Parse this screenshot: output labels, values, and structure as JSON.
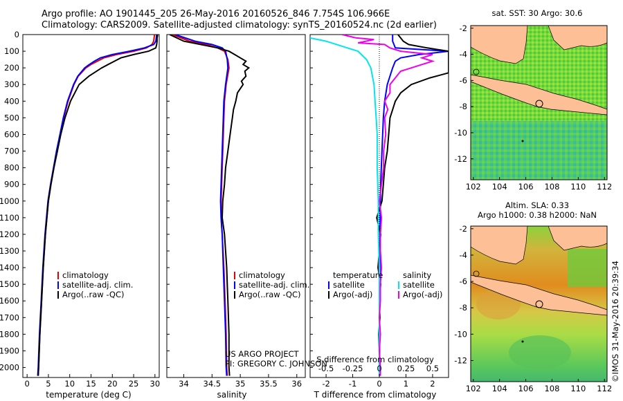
{
  "header": {
    "line1": "Argo profile: AO 1901445_205 26-May-2016 20160526_846 7.754S 106.966E",
    "line2": "Climatology: CARS2009. Satellite-adjusted climatology: synTS_20160524.nc (2d earlier)"
  },
  "colors": {
    "climatology": "#e00000",
    "satellite": "#0000ff",
    "argo": "#000000",
    "salinity_sat": "#00e5ee",
    "salinity_argo": "#ee00ee",
    "land": "#fdbf96"
  },
  "chart_data": [
    {
      "type": "line",
      "id": "temperature",
      "xlabel": "temperature (deg C)",
      "ylabel": "",
      "xlim": [
        -1,
        31
      ],
      "ylim": [
        2060,
        0
      ],
      "xticks": [
        0,
        5,
        10,
        15,
        20,
        25,
        30
      ],
      "yticks": [
        0,
        100,
        200,
        300,
        400,
        500,
        600,
        700,
        800,
        900,
        1000,
        1100,
        1200,
        1300,
        1400,
        1500,
        1600,
        1700,
        1800,
        1900,
        2000
      ],
      "legend": [
        "climatology",
        "satellite-adj. clim.",
        "Argo(..raw -QC)"
      ],
      "series": [
        {
          "name": "climatology",
          "depth": [
            0,
            20,
            40,
            60,
            80,
            100,
            120,
            140,
            160,
            180,
            200,
            250,
            300,
            400,
            500,
            600,
            700,
            800,
            900,
            1000,
            1200,
            1400,
            1600,
            1800,
            2000,
            2050
          ],
          "values": [
            29.9,
            29.8,
            29.7,
            29.3,
            28,
            25,
            21,
            18,
            16.5,
            15,
            13.8,
            12,
            11,
            9.6,
            8.6,
            7.8,
            7,
            6.3,
            5.6,
            5,
            4.3,
            3.8,
            3.4,
            3.0,
            2.7,
            2.6
          ]
        },
        {
          "name": "satellite-adj. clim.",
          "depth": [
            0,
            20,
            40,
            60,
            80,
            100,
            120,
            140,
            160,
            180,
            200,
            250,
            300,
            400,
            500,
            600,
            700,
            800,
            900,
            1000,
            1200,
            1400,
            1600,
            1800,
            2000,
            2050
          ],
          "values": [
            30.4,
            30.3,
            30.2,
            29.7,
            27.5,
            24,
            20,
            17.2,
            15.8,
            14.6,
            13.5,
            11.9,
            10.9,
            9.5,
            8.5,
            7.7,
            6.9,
            6.2,
            5.5,
            4.9,
            4.2,
            3.7,
            3.3,
            2.9,
            2.6,
            2.5
          ]
        },
        {
          "name": "Argo(..raw -QC)",
          "depth": [
            0,
            10,
            20,
            40,
            60,
            80,
            100,
            120,
            140,
            160,
            180,
            200,
            250,
            300,
            400,
            500,
            600,
            700,
            800,
            900,
            1000,
            1200,
            1400,
            1600,
            1800,
            2000,
            2050
          ],
          "values": [
            30.6,
            30.6,
            30.5,
            30.5,
            30.4,
            30.2,
            28.5,
            25,
            22,
            20.5,
            19,
            17.5,
            14.5,
            12.2,
            10.2,
            8.9,
            7.9,
            7.1,
            6.3,
            5.6,
            5,
            4.3,
            3.8,
            3.4,
            3.0,
            2.7,
            2.6
          ]
        }
      ]
    },
    {
      "type": "line",
      "id": "salinity",
      "xlabel": "salinity",
      "ylabel": "",
      "xlim": [
        33.7,
        36.15
      ],
      "ylim": [
        2060,
        0
      ],
      "xticks": [
        34,
        34.5,
        35,
        35.5,
        36
      ],
      "xticklabels": [
        "34",
        "34.5",
        "35",
        "35.5",
        "36"
      ],
      "legend": [
        "climatology",
        "satellite-adj. clim.",
        "Argo(..raw -QC)"
      ],
      "annotation": [
        "US ARGO PROJECT",
        "PI: GREGORY C. JOHNSON"
      ],
      "series": [
        {
          "name": "climatology",
          "depth": [
            0,
            40,
            60,
            80,
            100,
            150,
            200,
            300,
            400,
            500,
            600,
            700,
            800,
            900,
            1000,
            1100,
            1200,
            1400,
            1600,
            1800,
            2000,
            2050
          ],
          "values": [
            33.8,
            34.1,
            34.4,
            34.6,
            34.72,
            34.78,
            34.8,
            34.75,
            34.72,
            34.71,
            34.7,
            34.69,
            34.68,
            34.67,
            34.66,
            34.66,
            34.68,
            34.71,
            34.73,
            34.75,
            34.76,
            34.77
          ]
        },
        {
          "name": "satellite-adj. clim.",
          "depth": [
            0,
            40,
            60,
            80,
            100,
            150,
            200,
            300,
            400,
            500,
            600,
            700,
            800,
            900,
            1000,
            1100,
            1200,
            1400,
            1600,
            1800,
            2000,
            2050
          ],
          "values": [
            33.85,
            34.2,
            34.5,
            34.68,
            34.74,
            34.77,
            34.78,
            34.74,
            34.71,
            34.7,
            34.69,
            34.68,
            34.67,
            34.66,
            34.65,
            34.66,
            34.68,
            34.7,
            34.72,
            34.74,
            34.75,
            34.76
          ]
        },
        {
          "name": "Argo(..raw -QC)",
          "depth": [
            0,
            40,
            60,
            80,
            100,
            120,
            140,
            160,
            180,
            200,
            220,
            250,
            280,
            300,
            350,
            400,
            450,
            500,
            600,
            700,
            800,
            900,
            1000,
            1100,
            1200,
            1300,
            1400,
            1500,
            1600,
            1700,
            1800,
            1900,
            2000,
            2050
          ],
          "values": [
            33.75,
            34.0,
            34.3,
            34.6,
            34.8,
            34.9,
            35.0,
            35.1,
            35.05,
            35.15,
            35.08,
            35.1,
            35.02,
            35.05,
            34.95,
            34.92,
            34.88,
            34.86,
            34.82,
            34.78,
            34.74,
            34.72,
            34.69,
            34.68,
            34.72,
            34.74,
            34.76,
            34.77,
            34.78,
            34.79,
            34.8,
            34.8,
            34.8,
            34.81
          ]
        }
      ]
    },
    {
      "type": "line",
      "id": "differences",
      "xlabel": "T difference from climatology",
      "ylabel": "",
      "xlim": [
        -2.6,
        2.6
      ],
      "ylim": [
        2060,
        0
      ],
      "xticks": [
        -2,
        -1,
        0,
        1,
        2
      ],
      "xticklabels": [
        "-2",
        "-1",
        "0",
        "1",
        "2"
      ],
      "sxlabel": "S difference from climatology",
      "sticks": [
        -0.5,
        -0.25,
        0,
        0.25,
        0.5
      ],
      "sticklabels": [
        "-0.5",
        "-0.25",
        "0",
        "0.25",
        "0.5"
      ],
      "legend_temperature": {
        "title": "temperature",
        "items": [
          "satellite",
          "Argo(-adj)"
        ]
      },
      "legend_salinity": {
        "title": "salinity",
        "items": [
          "satellite",
          "Argo(-adj)"
        ]
      },
      "series": [
        {
          "name": "satellite",
          "kind": "temperature",
          "depth": [
            0,
            40,
            80,
            100,
            120,
            140,
            160,
            180,
            200,
            300,
            400,
            500,
            700,
            900,
            1100,
            1300,
            1500,
            1700,
            1900,
            2050
          ],
          "values": [
            0.5,
            0.5,
            0.6,
            2.6,
            1.5,
            0.8,
            0.6,
            0.55,
            0.5,
            0.3,
            0.2,
            0.15,
            0.1,
            0.05,
            0.03,
            0.02,
            0.02,
            0.01,
            0.01,
            0.0
          ]
        },
        {
          "name": "Argo(-adj)",
          "kind": "temperature",
          "depth": [
            0,
            40,
            60,
            80,
            100,
            120,
            140,
            180,
            200,
            230,
            260,
            300,
            350,
            400,
            500,
            600,
            700,
            800,
            900,
            1000,
            1100,
            1200,
            1300,
            1400,
            1500,
            1600,
            1700,
            1800,
            1900,
            2000,
            2050
          ],
          "values": [
            0.7,
            0.9,
            1.1,
            1.8,
            2.6,
            2.6,
            2.6,
            2.6,
            2.6,
            2.6,
            1.9,
            1.2,
            0.8,
            0.6,
            0.4,
            0.35,
            0.3,
            0.2,
            0.15,
            0.1,
            -0.1,
            0.05,
            0.0,
            -0.05,
            0.05,
            0.0,
            0.02,
            -0.02,
            0.0,
            0.0,
            0.01
          ]
        },
        {
          "name": "satellite",
          "kind": "salinity",
          "depth": [
            0,
            20,
            40,
            60,
            80,
            100,
            150,
            200,
            300,
            400,
            500,
            600,
            800,
            1000,
            1200,
            1400,
            1600,
            1800,
            2000,
            2050
          ],
          "values": [
            -0.9,
            -0.65,
            -0.5,
            -0.4,
            -0.3,
            -0.2,
            -0.12,
            -0.08,
            -0.05,
            -0.04,
            -0.03,
            -0.02,
            -0.02,
            -0.01,
            -0.01,
            0.0,
            0.0,
            0.0,
            0.0,
            0.0
          ]
        },
        {
          "name": "Argo(-adj)",
          "kind": "salinity",
          "depth": [
            0,
            20,
            30,
            50,
            60,
            80,
            100,
            120,
            140,
            160,
            200,
            220,
            260,
            300,
            350,
            400,
            450,
            500,
            600,
            700,
            800,
            900,
            1000,
            1100,
            1200,
            1300,
            1400,
            1500,
            1600,
            1700,
            1800,
            1900,
            2000,
            2050
          ],
          "values": [
            -0.35,
            -0.22,
            -0.05,
            -0.2,
            0.05,
            0.1,
            0.2,
            0.5,
            0.4,
            0.5,
            0.3,
            0.2,
            0.15,
            0.1,
            0.1,
            0.05,
            0.08,
            0.05,
            0.06,
            0.04,
            0.04,
            0.02,
            0.0,
            0.02,
            0.01,
            0.01,
            0.02,
            0.01,
            0.01,
            0.0,
            0.01,
            0.0,
            0.01,
            0.01
          ]
        }
      ]
    },
    {
      "type": "heatmap",
      "id": "sst_map",
      "title": "sat. SST: 30 Argo: 30.6",
      "xlim": [
        101.8,
        112.2
      ],
      "ylim": [
        -13.6,
        -1.8
      ],
      "xticks": [
        102,
        104,
        106,
        108,
        110,
        112
      ],
      "yticks": [
        -2,
        -4,
        -6,
        -8,
        -10,
        -12
      ],
      "argo_position": [
        106.966,
        -7.754
      ]
    },
    {
      "type": "heatmap",
      "id": "sla_map",
      "title": "Altim. SLA: 0.33",
      "subtitle": "Argo h1000: 0.38 h2000: NaN",
      "xlim": [
        101.8,
        112.2
      ],
      "ylim": [
        -13.6,
        -1.8
      ],
      "xticks": [
        102,
        104,
        106,
        108,
        110,
        112
      ],
      "yticks": [
        -2,
        -4,
        -6,
        -8,
        -10,
        -12
      ],
      "argo_position": [
        106.966,
        -7.754
      ]
    }
  ],
  "footer": {
    "stamp": "©IMOS 31-May-2016 20:39:34"
  }
}
